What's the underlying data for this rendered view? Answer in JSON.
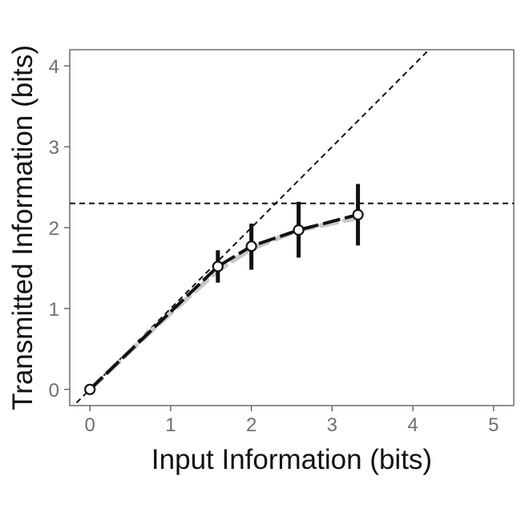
{
  "chart_data": {
    "type": "line",
    "title": "",
    "xlabel": "Input Information (bits)",
    "ylabel": "Transmitted Information (bits)",
    "xlim": [
      -0.25,
      5.25
    ],
    "ylim": [
      -0.2,
      4.2
    ],
    "xticks": [
      0,
      1,
      2,
      3,
      4,
      5
    ],
    "yticks": [
      0,
      1,
      2,
      3,
      4
    ],
    "grid": false,
    "series": [
      {
        "style": "solid black with white-filled circle markers and error bars",
        "x": [
          0,
          1.585,
          2,
          2.585,
          3.32
        ],
        "y": [
          0,
          1.52,
          1.77,
          1.97,
          2.16
        ],
        "error_low": [
          0,
          1.32,
          1.48,
          1.63,
          1.78
        ],
        "error_high": [
          0,
          1.72,
          2.05,
          2.32,
          2.54
        ]
      },
      {
        "style": "light gray dashed fit curve",
        "x": [
          0,
          0.8,
          1.585,
          2,
          2.585,
          3.32
        ],
        "y": [
          0,
          0.76,
          1.47,
          1.74,
          1.97,
          2.12
        ]
      }
    ],
    "reference_lines": [
      {
        "kind": "diagonal",
        "slope": 1,
        "intercept": 0,
        "style": "black dashed"
      },
      {
        "kind": "horizontal",
        "y": 2.3,
        "style": "black dashed"
      }
    ],
    "colors": {
      "axis": "#555555",
      "line": "#111111",
      "fit": "#c8c8c8",
      "tick_label": "#6f6f6f"
    }
  }
}
